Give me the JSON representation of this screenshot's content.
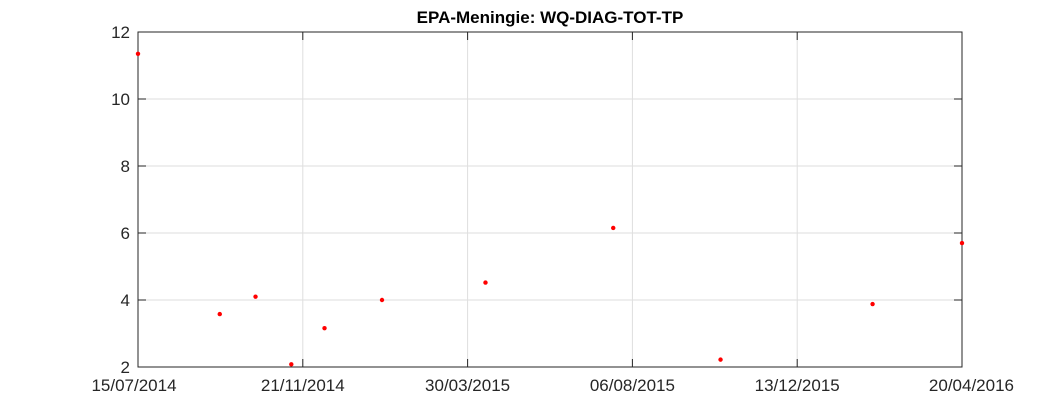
{
  "chart_data": {
    "type": "scatter",
    "title": "EPA-Meningie: WQ-DIAG-TOT-TP",
    "xlabel": "",
    "ylabel": "",
    "x_range": [
      "2014-07-15",
      "2016-04-20"
    ],
    "ylim": [
      2,
      12
    ],
    "x_ticks": [
      {
        "date": "2014-07-15",
        "label": "15/07/2014"
      },
      {
        "date": "2014-11-21",
        "label": "21/11/2014"
      },
      {
        "date": "2015-03-30",
        "label": "30/03/2015"
      },
      {
        "date": "2015-08-06",
        "label": "06/08/2015"
      },
      {
        "date": "2015-12-13",
        "label": "13/12/2015"
      },
      {
        "date": "2016-04-20",
        "label": "20/04/2016"
      }
    ],
    "y_ticks": [
      {
        "value": 2,
        "label": "2"
      },
      {
        "value": 4,
        "label": "4"
      },
      {
        "value": 6,
        "label": "6"
      },
      {
        "value": 8,
        "label": "8"
      },
      {
        "value": 10,
        "label": "10"
      },
      {
        "value": 12,
        "label": "12"
      }
    ],
    "grid": true,
    "marker_color": "#ff0000",
    "points": [
      {
        "x": "2014-07-15",
        "y": 11.35
      },
      {
        "x": "2014-09-17",
        "y": 3.58
      },
      {
        "x": "2014-10-15",
        "y": 4.1
      },
      {
        "x": "2014-11-12",
        "y": 2.08
      },
      {
        "x": "2014-12-08",
        "y": 3.16
      },
      {
        "x": "2015-01-22",
        "y": 4.0
      },
      {
        "x": "2015-04-13",
        "y": 4.52
      },
      {
        "x": "2015-07-22",
        "y": 6.15
      },
      {
        "x": "2015-10-14",
        "y": 2.22
      },
      {
        "x": "2016-02-10",
        "y": 3.88
      },
      {
        "x": "2016-04-20",
        "y": 5.7
      }
    ]
  }
}
